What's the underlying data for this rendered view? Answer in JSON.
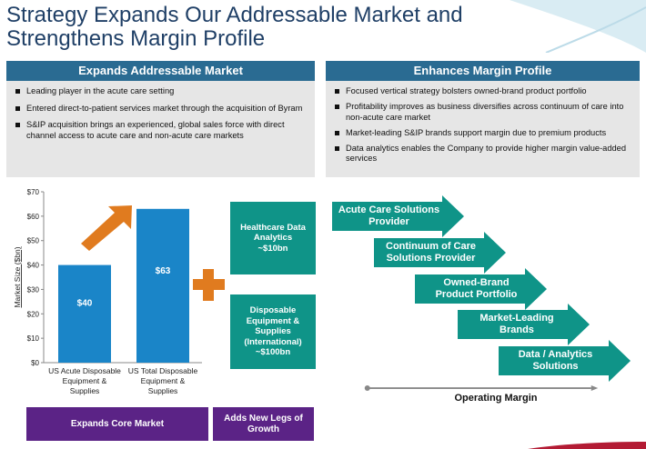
{
  "title": {
    "line1": "Strategy Expands Our Addressable Market and",
    "line2": "Strengthens Margin Profile"
  },
  "left_panel": {
    "header": "Expands Addressable Market",
    "bullets": [
      "Leading player in the acute care setting",
      "Entered direct-to-patient services market through the acquisition of Byram",
      "S&IP acquisition brings an experienced, global sales force with direct channel access to acute care and non-acute care markets"
    ]
  },
  "right_panel": {
    "header": "Enhances Margin Profile",
    "bullets": [
      "Focused vertical strategy bolsters owned-brand product portfolio",
      "Profitability improves as business diversifies across continuum of care into non-acute care market",
      "Market-leading S&IP brands support margin due to premium products",
      "Data analytics enables the Company to provide higher margin value-added services"
    ]
  },
  "chart_data": {
    "type": "bar",
    "categories": [
      "US Acute Disposable Equipment & Supplies",
      "US Total Disposable Equipment & Supplies"
    ],
    "category_lines": [
      [
        "US Acute Disposable",
        "Equipment &",
        "Supplies"
      ],
      [
        "US Total Disposable",
        "Equipment &",
        "Supplies"
      ]
    ],
    "values": [
      40,
      63
    ],
    "value_labels": [
      "$40",
      "$63"
    ],
    "ylabel": "Market Size ($bn)",
    "ylim": [
      0,
      70
    ],
    "yticks": [
      "$0",
      "$10",
      "$20",
      "$30",
      "$40",
      "$50",
      "$60",
      "$70"
    ],
    "bar_color": "#1a85c8",
    "grid": false
  },
  "growth_boxes": [
    {
      "lines": [
        "Healthcare Data",
        "Analytics",
        "~$10bn"
      ]
    },
    {
      "lines": [
        "Disposable",
        "Equipment &",
        "Supplies",
        "(International)",
        "~$100bn"
      ]
    }
  ],
  "bottom_labels": {
    "core": "Expands Core Market",
    "growth_line1": "Adds New Legs of",
    "growth_line2": "Growth"
  },
  "margin_arrows": [
    {
      "lines": [
        "Acute Care Solutions",
        "Provider"
      ]
    },
    {
      "lines": [
        "Continuum of Care",
        "Solutions Provider"
      ]
    },
    {
      "lines": [
        "Owned-Brand",
        "Product Portfolio"
      ]
    },
    {
      "lines": [
        "Market-Leading",
        "Brands"
      ]
    },
    {
      "lines": [
        "Data / Analytics",
        "Solutions"
      ]
    }
  ],
  "operating_margin_label": "Operating Margin",
  "colors": {
    "title": "#1f3f66",
    "panel_header": "#2a6b92",
    "teal": "#0f9488",
    "purple": "#5b2386",
    "orange": "#e07b1f",
    "bar": "#1a85c8"
  }
}
